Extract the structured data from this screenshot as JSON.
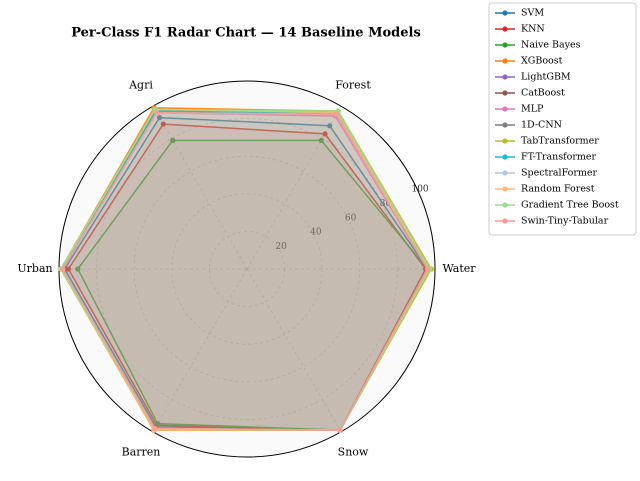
{
  "chart_data": {
    "type": "radar",
    "title": "Per-Class F1 Radar Chart — 14 Baseline Models",
    "categories": [
      "Water",
      "Forest",
      "Agri",
      "Urban",
      "Barren",
      "Snow"
    ],
    "ylim": [
      0,
      100
    ],
    "yticks": [
      20,
      40,
      60,
      80,
      100
    ],
    "grid": true,
    "legend": "outside upper right",
    "series": [
      {
        "name": "SVM",
        "color": "#1f77b4",
        "values": [
          96,
          88,
          93,
          97,
          97,
          99
        ]
      },
      {
        "name": "KNN",
        "color": "#d62728",
        "values": [
          95,
          83,
          89,
          95,
          96,
          99
        ]
      },
      {
        "name": "Naive Bayes",
        "color": "#2ca02c",
        "values": [
          96,
          79,
          79,
          90,
          95,
          99
        ]
      },
      {
        "name": "XGBoost",
        "color": "#ff7f0e",
        "values": [
          97,
          97,
          99,
          99,
          99,
          99
        ]
      },
      {
        "name": "LightGBM",
        "color": "#9467bd",
        "values": [
          97,
          96,
          98,
          99,
          99,
          99
        ]
      },
      {
        "name": "CatBoost",
        "color": "#8c564b",
        "values": [
          97,
          96,
          97,
          98,
          99,
          99
        ]
      },
      {
        "name": "MLP",
        "color": "#e377c2",
        "values": [
          96,
          94,
          96,
          98,
          98,
          99
        ]
      },
      {
        "name": "1D-CNN",
        "color": "#7f7f7f",
        "values": [
          97,
          96,
          97,
          98,
          98,
          99
        ]
      },
      {
        "name": "TabTransformer",
        "color": "#bcbd22",
        "values": [
          98,
          97,
          98,
          99,
          99,
          99
        ]
      },
      {
        "name": "FT-Transformer",
        "color": "#17becf",
        "values": [
          97,
          96,
          97,
          98,
          98,
          99
        ]
      },
      {
        "name": "SpectralFormer",
        "color": "#aec7e8",
        "values": [
          97,
          95,
          96,
          98,
          98,
          99
        ]
      },
      {
        "name": "Random Forest",
        "color": "#ffbb78",
        "values": [
          97,
          96,
          98,
          99,
          99,
          99
        ]
      },
      {
        "name": "Gradient Tree Boost",
        "color": "#98df8a",
        "values": [
          97,
          97,
          98,
          99,
          98,
          99
        ]
      },
      {
        "name": "Swin-Tiny-Tabular",
        "color": "#ff9896",
        "values": [
          96,
          95,
          96,
          98,
          98,
          99
        ]
      }
    ]
  }
}
